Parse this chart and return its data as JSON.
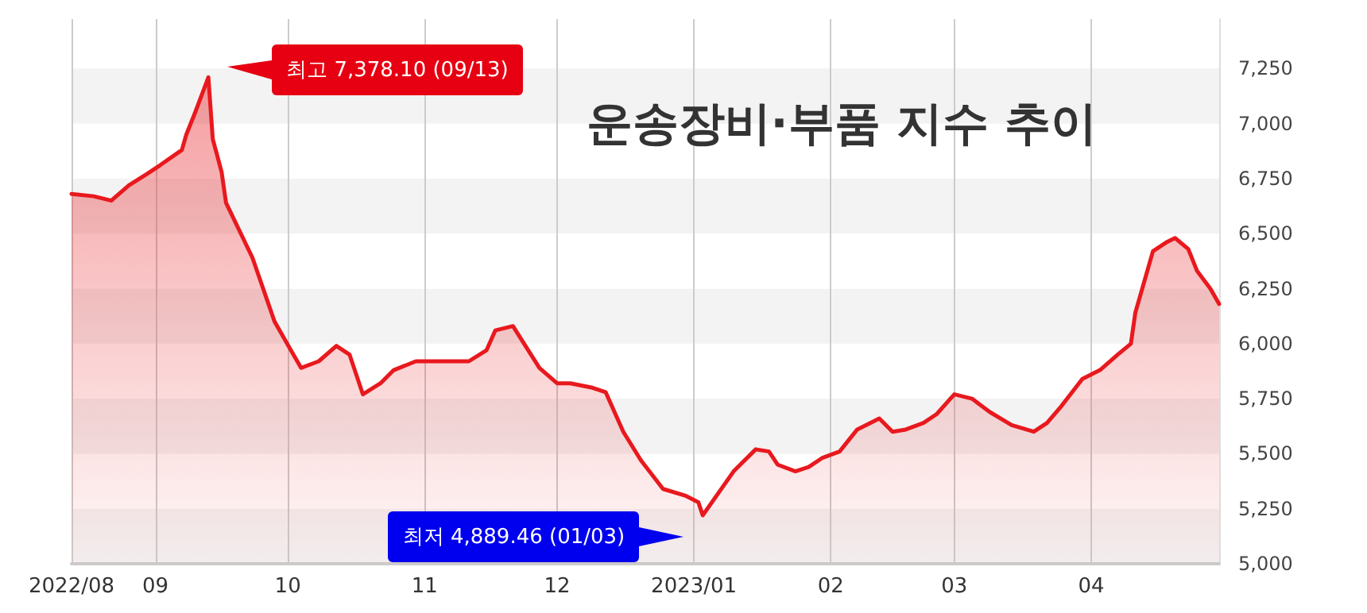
{
  "chart_data": {
    "type": "area",
    "title": "운송장비·부품 지수 추이",
    "annotations": [
      "최고 7,378.10 (09/13)",
      "최저 4,889.46 (01/03)"
    ],
    "x": [
      "2022-08-13",
      "2022-08-18",
      "2022-08-22",
      "2022-08-26",
      "2022-08-30",
      "2022-09-02",
      "2022-09-07",
      "2022-09-08",
      "2022-09-10",
      "2022-09-13",
      "2022-09-14",
      "2022-09-16",
      "2022-09-17",
      "2022-09-23",
      "2022-09-28",
      "2022-10-02",
      "2022-10-04",
      "2022-10-08",
      "2022-10-12",
      "2022-10-15",
      "2022-10-18",
      "2022-10-22",
      "2022-10-25",
      "2022-10-30",
      "2022-11-05",
      "2022-11-11",
      "2022-11-15",
      "2022-11-17",
      "2022-11-21",
      "2022-11-27",
      "2022-12-01",
      "2022-12-04",
      "2022-12-09",
      "2022-12-12",
      "2022-12-16",
      "2022-12-20",
      "2022-12-25",
      "2022-12-30",
      "2023-01-02",
      "2023-01-03",
      "2023-01-10",
      "2023-01-15",
      "2023-01-18",
      "2023-01-20",
      "2023-01-24",
      "2023-01-27",
      "2023-01-30",
      "2023-02-03",
      "2023-02-07",
      "2023-02-12",
      "2023-02-15",
      "2023-02-18",
      "2023-02-22",
      "2023-02-25",
      "2023-03-01",
      "2023-03-05",
      "2023-03-09",
      "2023-03-14",
      "2023-03-19",
      "2023-03-22",
      "2023-03-25",
      "2023-03-30",
      "2023-04-03",
      "2023-04-07",
      "2023-04-10",
      "2023-04-11",
      "2023-04-15",
      "2023-04-18",
      "2023-04-20",
      "2023-04-23",
      "2023-04-25",
      "2023-04-28",
      "2023-04-30"
    ],
    "series": [
      {
        "color": "#e8191e",
        "values": [
          6680,
          6670,
          6650,
          6720,
          6770,
          6810,
          6880,
          6950,
          7050,
          7210,
          6930,
          6780,
          6640,
          6390,
          6100,
          5960,
          5890,
          5920,
          5990,
          5950,
          5770,
          5820,
          5880,
          5920,
          5920,
          5920,
          5970,
          6060,
          6080,
          5890,
          5820,
          5820,
          5800,
          5780,
          5600,
          5470,
          5340,
          5310,
          5280,
          5220,
          5420,
          5520,
          5510,
          5450,
          5420,
          5440,
          5480,
          5510,
          5610,
          5660,
          5600,
          5610,
          5640,
          5680,
          5770,
          5750,
          5690,
          5630,
          5600,
          5640,
          5710,
          5840,
          5880,
          5950,
          6000,
          6140,
          6420,
          6460,
          6480,
          6430,
          6330,
          6250,
          6180
        ]
      }
    ],
    "xlim": [
      "2022-08-13",
      "2023-04-30"
    ],
    "xticks": [
      {
        "value": "2022-08-13",
        "label": "2022/08"
      },
      {
        "value": "2022-09-01",
        "label": "09"
      },
      {
        "value": "2022-10-01",
        "label": "10"
      },
      {
        "value": "2022-11-01",
        "label": "11"
      },
      {
        "value": "2022-12-01",
        "label": "12"
      },
      {
        "value": "2023-01-01",
        "label": "2023/01"
      },
      {
        "value": "2023-02-01",
        "label": "02"
      },
      {
        "value": "2023-03-01",
        "label": "03"
      },
      {
        "value": "2023-04-01",
        "label": "04"
      }
    ],
    "ylim": [
      5000,
      7475
    ],
    "yticks": [
      {
        "value": 5000,
        "label": "5,000"
      },
      {
        "value": 5250,
        "label": "5,250"
      },
      {
        "value": 5500,
        "label": "5,500"
      },
      {
        "value": 5750,
        "label": "5,750"
      },
      {
        "value": 6000,
        "label": "6,000"
      },
      {
        "value": 6250,
        "label": "6,250"
      },
      {
        "value": 6500,
        "label": "6,500"
      },
      {
        "value": 6750,
        "label": "6,750"
      },
      {
        "value": 7000,
        "label": "7,000"
      },
      {
        "value": 7250,
        "label": "7,250"
      }
    ],
    "grid": true,
    "marker": "none",
    "line_style": "solid"
  }
}
